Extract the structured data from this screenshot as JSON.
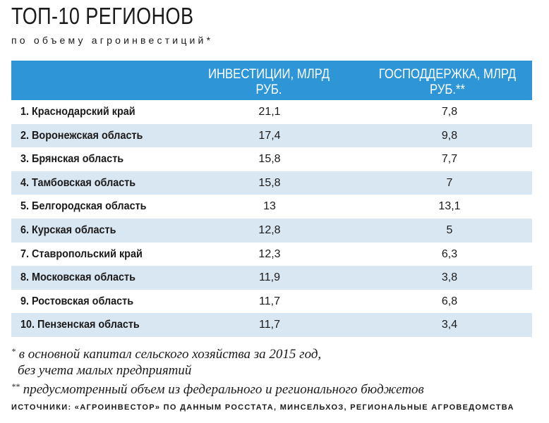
{
  "title": "ТОП-10 РЕГИОНОВ",
  "subtitle": "по объему агроинвестиций*",
  "chart_data": {
    "type": "table",
    "title": "ТОП-10 РЕГИОНОВ",
    "subtitle": "по объему агроинвестиций*",
    "columns": [
      "",
      "ИНВЕСТИЦИИ, МЛРД РУБ.",
      "ГОСПОДДЕРЖКА, МЛРД РУБ.**"
    ],
    "rows": [
      {
        "name": "1. Краснодарский край",
        "investments": "21,1",
        "support": "7,8"
      },
      {
        "name": "2. Воронежская область",
        "investments": "17,4",
        "support": "9,8"
      },
      {
        "name": "3. Брянская область",
        "investments": "15,8",
        "support": "7,7"
      },
      {
        "name": "4. Тамбовская область",
        "investments": "15,8",
        "support": "7"
      },
      {
        "name": "5. Белгородская область",
        "investments": "13",
        "support": "13,1"
      },
      {
        "name": "6. Курская область",
        "investments": "12,8",
        "support": "5"
      },
      {
        "name": "7. Ставропольский край",
        "investments": "12,3",
        "support": "6,3"
      },
      {
        "name": "8. Московская область",
        "investments": "11,9",
        "support": "3,8"
      },
      {
        "name": "9. Ростовская область",
        "investments": "11,7",
        "support": "6,8"
      },
      {
        "name": "10. Пензенская область",
        "investments": "11,7",
        "support": "3,4"
      }
    ]
  },
  "notes": {
    "note1_mark": "*",
    "note1_line1": "в основной капитал сельского хозяйства за 2015 год,",
    "note1_line2": "без учета малых предприятий",
    "note2_mark": "**",
    "note2_text": "предусмотренный объем из федерального и регионального бюджетов"
  },
  "source": "ИСТОЧНИКИ: «АГРОИНВЕСТОР» ПО ДАННЫМ РОССТАТА, МИНСЕЛЬХОЗ, РЕГИОНАЛЬНЫЕ АГРОВЕДОМСТВА",
  "colors": {
    "header_bg": "#2e96d6",
    "alt_row_bg": "#d9e7f3",
    "header_text": "#ffffff"
  }
}
